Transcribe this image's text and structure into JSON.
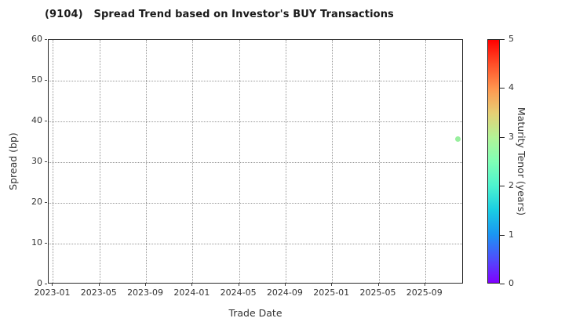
{
  "title": "(9104)   Spread Trend based on Investor's BUY Transactions",
  "chart_data": {
    "type": "scatter",
    "title": "(9104)   Spread Trend based on Investor's BUY Transactions",
    "xlabel": "Trade Date",
    "ylabel": "Spread (bp)",
    "x_tick_labels": [
      "2023-01",
      "2023-05",
      "2023-09",
      "2024-01",
      "2024-05",
      "2024-09",
      "2025-01",
      "2025-05",
      "2025-09"
    ],
    "x_tick_months": [
      0,
      4,
      8,
      12,
      16,
      20,
      24,
      28,
      32
    ],
    "x_domain_months": [
      -0.37,
      35.32
    ],
    "y_ticks": [
      0,
      10,
      20,
      30,
      40,
      50,
      60
    ],
    "ylim": [
      0,
      60
    ],
    "grid": true,
    "legend_position": "none",
    "points": [
      {
        "date": "2025-11",
        "x_month": 34.85,
        "spread_bp": 35.5,
        "maturity_tenor_years": 2.8,
        "color": "#98EF9E"
      }
    ],
    "colorbar": {
      "label": "Maturity Tenor (years)",
      "ticks": [
        0,
        1,
        2,
        3,
        4,
        5
      ],
      "range": [
        0,
        5
      ],
      "colormap": "rainbow",
      "gradient_stops": [
        {
          "value": 0.0,
          "color": "#8000FF"
        },
        {
          "value": 0.5,
          "color": "#4D4FFC"
        },
        {
          "value": 1.0,
          "color": "#1A96F3"
        },
        {
          "value": 1.5,
          "color": "#1ACEE3"
        },
        {
          "value": 2.0,
          "color": "#4DF3CE"
        },
        {
          "value": 2.5,
          "color": "#80FFB5"
        },
        {
          "value": 3.0,
          "color": "#B3F396"
        },
        {
          "value": 3.5,
          "color": "#E6CE74"
        },
        {
          "value": 4.0,
          "color": "#FF964F"
        },
        {
          "value": 4.5,
          "color": "#FF4F28"
        },
        {
          "value": 5.0,
          "color": "#FF0000"
        }
      ]
    },
    "colors": {
      "text": "#333333",
      "frame": "#2b2b2b",
      "grid": "#999999",
      "background": "#ffffff"
    }
  }
}
